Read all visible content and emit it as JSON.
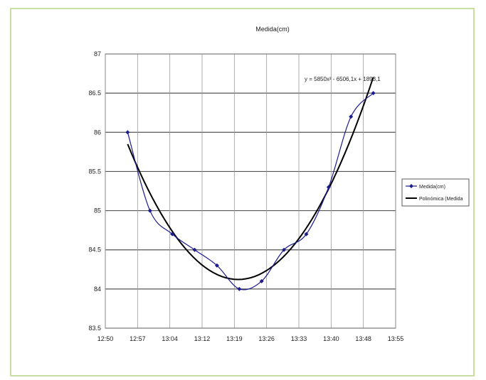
{
  "chart_data": {
    "type": "line",
    "title": "Medida(cm)",
    "xlabel": "",
    "ylabel": "",
    "x_ticks": [
      "12:50",
      "12:57",
      "13:04",
      "13:12",
      "13:19",
      "13:26",
      "13:33",
      "13:40",
      "13:48",
      "13:55"
    ],
    "y_ticks": [
      "83.5",
      "84",
      "84.5",
      "85",
      "85.5",
      "86",
      "86.5",
      "87"
    ],
    "ylim": [
      83.5,
      87
    ],
    "xlim_minutes": [
      770,
      835
    ],
    "grid": true,
    "legend_position": "right",
    "series": [
      {
        "name": "Medida(cm)",
        "color": "#1c1c8c",
        "marker": "diamond",
        "x_minutes": [
          775,
          780,
          785,
          790,
          795,
          800,
          805,
          810,
          815,
          820,
          825,
          830
        ],
        "values": [
          86.0,
          85.0,
          84.7,
          84.5,
          84.3,
          84.0,
          84.1,
          84.5,
          84.7,
          85.3,
          86.2,
          86.5
        ]
      },
      {
        "name": "Polinómica (Medida",
        "color": "#000000",
        "kind": "trendline"
      }
    ],
    "trendline_equation": "y = 5850x² - 6506,1x + 1893,1"
  }
}
